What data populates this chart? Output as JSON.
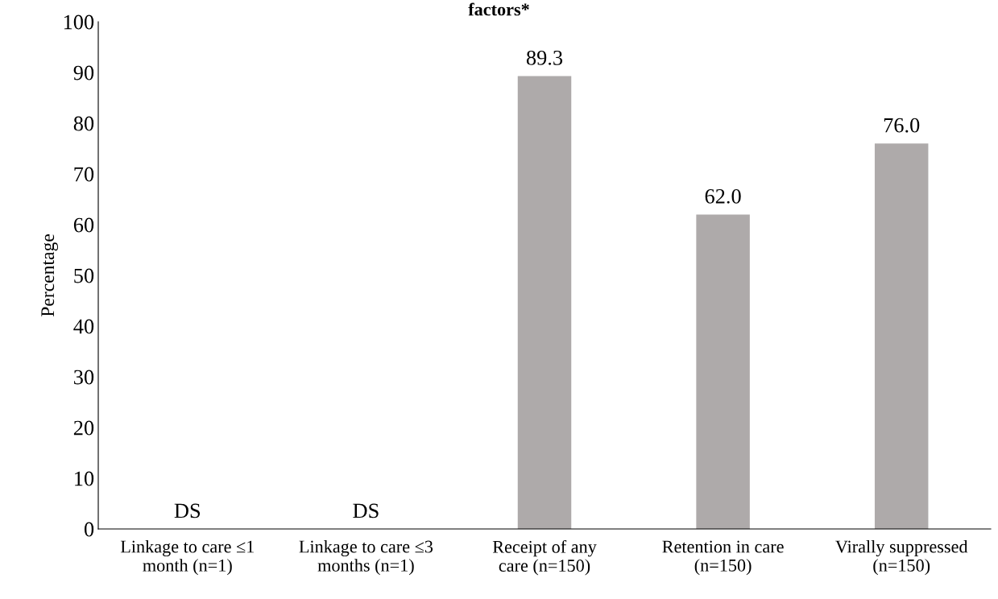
{
  "chart_data": {
    "type": "bar",
    "title": "factors*",
    "ylabel": "Percentage",
    "categories": [
      "Linkage to care ≤1\nmonth (n=1)",
      "Linkage to care ≤3\nmonths (n=1)",
      "Receipt of any\ncare (n=150)",
      "Retention in care\n(n=150)",
      "Virally suppressed\n(n=150)"
    ],
    "values": [
      null,
      null,
      89.3,
      62.0,
      76.0
    ],
    "value_labels": [
      "DS",
      "DS",
      "89.3",
      "62.0",
      "76.0"
    ],
    "color": "#aeaaaa",
    "ylim": [
      0,
      100
    ],
    "yticks": [
      0,
      10,
      20,
      30,
      40,
      50,
      60,
      70,
      80,
      90,
      100
    ],
    "grid": false,
    "legend": false
  }
}
